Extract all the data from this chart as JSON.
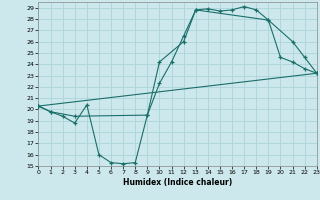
{
  "xlabel": "Humidex (Indice chaleur)",
  "xlim": [
    0,
    23
  ],
  "ylim": [
    15,
    29.5
  ],
  "yticks": [
    15,
    16,
    17,
    18,
    19,
    20,
    21,
    22,
    23,
    24,
    25,
    26,
    27,
    28,
    29
  ],
  "xticks": [
    0,
    1,
    2,
    3,
    4,
    5,
    6,
    7,
    8,
    9,
    10,
    11,
    12,
    13,
    14,
    15,
    16,
    17,
    18,
    19,
    20,
    21,
    22,
    23
  ],
  "bg_color": "#cce8ec",
  "line_color": "#1a6e6a",
  "grid_color": "#b0d8dc",
  "line1_x": [
    0,
    1,
    2,
    3,
    4,
    5,
    6,
    7,
    8,
    9,
    10,
    11,
    12,
    13,
    14,
    15,
    16,
    17,
    18,
    19,
    20,
    21,
    22,
    23
  ],
  "line1_y": [
    20.3,
    19.8,
    19.4,
    18.8,
    20.4,
    16.0,
    15.3,
    15.2,
    15.3,
    19.5,
    22.3,
    24.2,
    26.5,
    28.8,
    28.9,
    28.7,
    28.8,
    29.1,
    28.8,
    27.9,
    24.6,
    24.2,
    23.6,
    23.2
  ],
  "line2_x": [
    0,
    1,
    3,
    9,
    10,
    12,
    13,
    19,
    21,
    22,
    23
  ],
  "line2_y": [
    20.3,
    19.8,
    19.4,
    19.5,
    24.2,
    26.0,
    28.8,
    27.9,
    26.0,
    24.6,
    23.2
  ],
  "line3_x": [
    0,
    23
  ],
  "line3_y": [
    20.3,
    23.2
  ]
}
